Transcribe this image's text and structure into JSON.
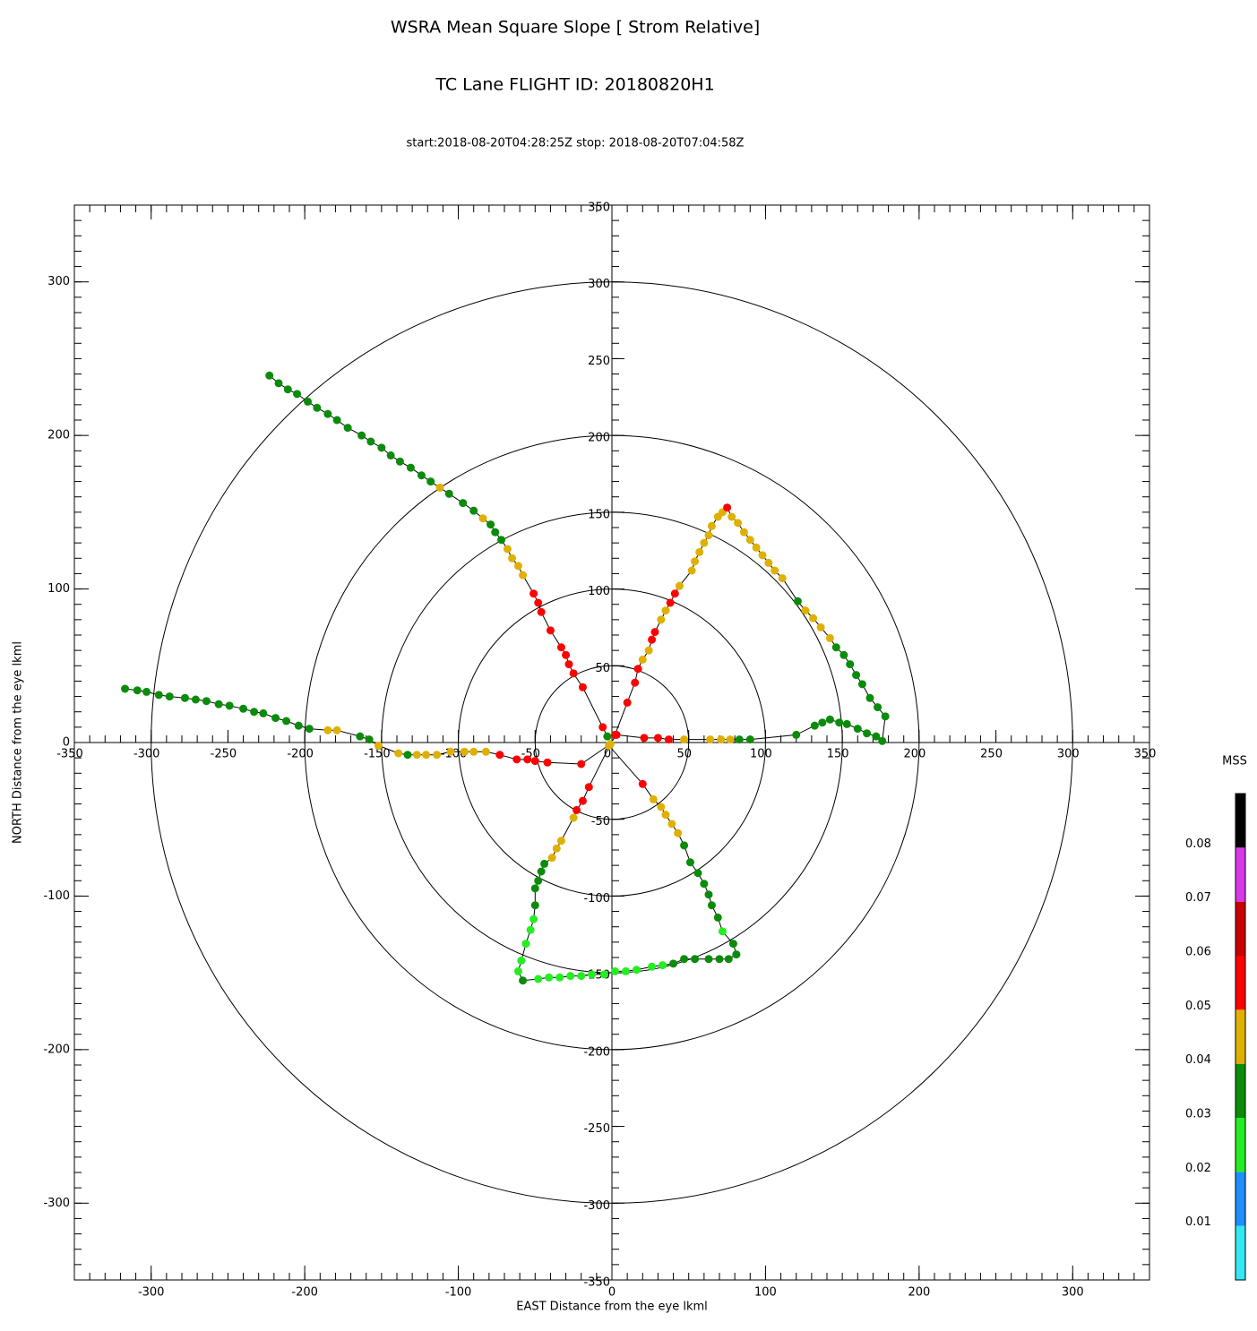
{
  "chart_data": {
    "type": "scatter",
    "title": "WSRA Mean Square Slope [ Strom Relative]",
    "subtitle": "TC Lane FLIGHT ID: 20180820H1",
    "time_range": "start:2018-08-20T04:28:25Z stop: 2018-08-20T07:04:58Z",
    "xlabel": "EAST Distance from the eye lkml",
    "ylabel": "NORTH Distance from the eye lkml",
    "xlim": [
      -350,
      350
    ],
    "ylim": [
      -350,
      350
    ],
    "xticks": [
      -300,
      -200,
      -100,
      0,
      100,
      200,
      300
    ],
    "yticks": [
      -300,
      -200,
      -100,
      0,
      100,
      200,
      300
    ],
    "minor_tick_interval": 10,
    "center_ticks": [
      -350,
      -300,
      -250,
      -200,
      -150,
      -100,
      -50,
      0,
      50,
      100,
      150,
      200,
      250,
      300,
      350
    ],
    "rings": [
      50,
      100,
      150,
      200,
      300
    ],
    "colorbar": {
      "title": "MSS",
      "lim": [
        0,
        0.09
      ],
      "ticks": [
        0.01,
        0.02,
        0.03,
        0.04,
        0.05,
        0.06,
        0.07,
        0.08
      ],
      "colors": [
        "#33e8f0",
        "#1e8fff",
        "#22ee22",
        "#0a8c0a",
        "#e0b000",
        "#ff0000",
        "#c80000",
        "#d838e8",
        "#000000"
      ]
    },
    "x": [
      -223,
      -217,
      -211,
      -205,
      -198,
      -192,
      -185,
      -179,
      -172,
      -163,
      -157,
      -150,
      -144,
      -138,
      -131,
      -124,
      -118,
      -112,
      -106,
      -97,
      -90,
      -84,
      -79,
      -76,
      -72,
      -68,
      -65,
      -61,
      -58,
      -51,
      -48,
      -46,
      -40,
      -33,
      -30,
      -28,
      -25,
      -19,
      -6,
      -3,
      2,
      10,
      15,
      17,
      20,
      24,
      26,
      28,
      32,
      35,
      38,
      41,
      44,
      52,
      54,
      57,
      60,
      63,
      65,
      69,
      72,
      75,
      78,
      82,
      86,
      90,
      94,
      98,
      102,
      106,
      111,
      121,
      126,
      131,
      136,
      142,
      146,
      151,
      155,
      159,
      163,
      168,
      173,
      178,
      176,
      172,
      166,
      160,
      153,
      148,
      142,
      137,
      132,
      120,
      90,
      83,
      77,
      71,
      64,
      47,
      37,
      30,
      21,
      3,
      -2,
      20,
      27,
      32,
      35,
      39,
      43,
      47,
      51,
      56,
      60,
      63,
      65,
      69,
      72,
      79,
      81,
      76,
      70,
      63,
      54,
      47,
      40,
      33,
      26,
      16,
      9,
      2,
      -5,
      -13,
      -20,
      -27,
      -34,
      -41,
      -48,
      -58,
      -61,
      -59,
      -56,
      -53,
      -51,
      -50,
      -50,
      -48,
      -46,
      -44,
      -39,
      -36,
      -33,
      -25,
      -23,
      -19,
      -15,
      -1,
      -20,
      -42,
      -50,
      -55,
      -62,
      -73,
      -82,
      -90,
      -96,
      -105,
      -114,
      -121,
      -127,
      -133,
      -139,
      -152,
      -158,
      -164,
      -179,
      -185,
      -197,
      -204,
      -212,
      -219,
      -227,
      -233,
      -240,
      -249,
      -256,
      -264,
      -271,
      -278,
      -288,
      -295,
      -303,
      -309,
      -317
    ],
    "y": [
      239,
      234,
      230,
      227,
      222,
      218,
      214,
      210,
      205,
      200,
      196,
      192,
      187,
      183,
      179,
      174,
      170,
      166,
      162,
      156,
      151,
      146,
      142,
      137,
      132,
      126,
      120,
      115,
      109,
      97,
      91,
      85,
      73,
      62,
      57,
      51,
      45,
      36,
      10,
      4,
      5,
      26,
      39,
      48,
      54,
      60,
      67,
      72,
      80,
      86,
      91,
      97,
      102,
      112,
      118,
      124,
      130,
      135,
      141,
      147,
      150,
      153,
      147,
      143,
      137,
      132,
      127,
      122,
      117,
      112,
      107,
      92,
      86,
      81,
      75,
      68,
      62,
      57,
      51,
      44,
      38,
      29,
      23,
      17,
      1,
      4,
      6,
      9,
      12,
      13,
      15,
      13,
      11,
      5,
      2,
      2,
      2,
      2,
      2,
      2,
      2,
      3,
      3,
      5,
      -2,
      -27,
      -37,
      -42,
      -47,
      -53,
      -59,
      -67,
      -78,
      -85,
      -92,
      -99,
      -106,
      -114,
      -123,
      -131,
      -138,
      -141,
      -141,
      -141,
      -141,
      -141,
      -144,
      -145,
      -146,
      -148,
      -149,
      -149,
      -151,
      -151,
      -152,
      -152,
      -153,
      -153,
      -154,
      -155,
      -149,
      -142,
      -131,
      -122,
      -115,
      -106,
      -95,
      -90,
      -84,
      -79,
      -75,
      -69,
      -64,
      -49,
      -44,
      -38,
      -29,
      -1,
      -14,
      -13,
      -12,
      -11,
      -11,
      -8,
      -6,
      -6,
      -6,
      -6,
      -8,
      -8,
      -8,
      -8,
      -7,
      -2,
      2,
      4,
      8,
      8,
      9,
      11,
      14,
      16,
      19,
      20,
      22,
      24,
      25,
      27,
      28,
      29,
      30,
      31,
      33,
      34,
      35
    ],
    "mss": [
      0.035,
      0.035,
      0.035,
      0.035,
      0.035,
      0.035,
      0.035,
      0.035,
      0.035,
      0.035,
      0.035,
      0.035,
      0.035,
      0.035,
      0.035,
      0.035,
      0.035,
      0.045,
      0.035,
      0.035,
      0.035,
      0.045,
      0.035,
      0.035,
      0.035,
      0.045,
      0.045,
      0.045,
      0.045,
      0.055,
      0.055,
      0.055,
      0.055,
      0.055,
      0.055,
      0.055,
      0.055,
      0.055,
      0.055,
      0.035,
      0.055,
      0.055,
      0.055,
      0.055,
      0.045,
      0.045,
      0.055,
      0.055,
      0.045,
      0.045,
      0.055,
      0.055,
      0.045,
      0.045,
      0.045,
      0.045,
      0.045,
      0.045,
      0.045,
      0.045,
      0.045,
      0.055,
      0.045,
      0.045,
      0.045,
      0.045,
      0.045,
      0.045,
      0.045,
      0.045,
      0.045,
      0.035,
      0.045,
      0.045,
      0.045,
      0.045,
      0.035,
      0.035,
      0.035,
      0.035,
      0.035,
      0.035,
      0.035,
      0.035,
      0.035,
      0.035,
      0.035,
      0.035,
      0.035,
      0.035,
      0.035,
      0.035,
      0.035,
      0.035,
      0.035,
      0.035,
      0.045,
      0.045,
      0.045,
      0.045,
      0.055,
      0.055,
      0.055,
      0.055,
      0.045,
      0.055,
      0.045,
      0.045,
      0.045,
      0.045,
      0.045,
      0.035,
      0.035,
      0.035,
      0.035,
      0.035,
      0.035,
      0.035,
      0.025,
      0.035,
      0.035,
      0.035,
      0.035,
      0.035,
      0.035,
      0.035,
      0.035,
      0.025,
      0.025,
      0.025,
      0.025,
      0.025,
      0.025,
      0.025,
      0.025,
      0.025,
      0.025,
      0.025,
      0.025,
      0.035,
      0.025,
      0.025,
      0.025,
      0.025,
      0.025,
      0.035,
      0.035,
      0.035,
      0.035,
      0.035,
      0.045,
      0.045,
      0.045,
      0.045,
      0.055,
      0.055,
      0.055,
      0.045,
      0.055,
      0.055,
      0.055,
      0.055,
      0.055,
      0.055,
      0.045,
      0.045,
      0.045,
      0.045,
      0.045,
      0.045,
      0.045,
      0.035,
      0.045,
      0.045,
      0.035,
      0.035,
      0.045,
      0.045,
      0.035,
      0.035,
      0.035,
      0.035,
      0.035,
      0.035,
      0.035,
      0.035,
      0.035,
      0.035,
      0.035,
      0.035,
      0.035,
      0.035,
      0.035,
      0.035,
      0.035
    ]
  }
}
